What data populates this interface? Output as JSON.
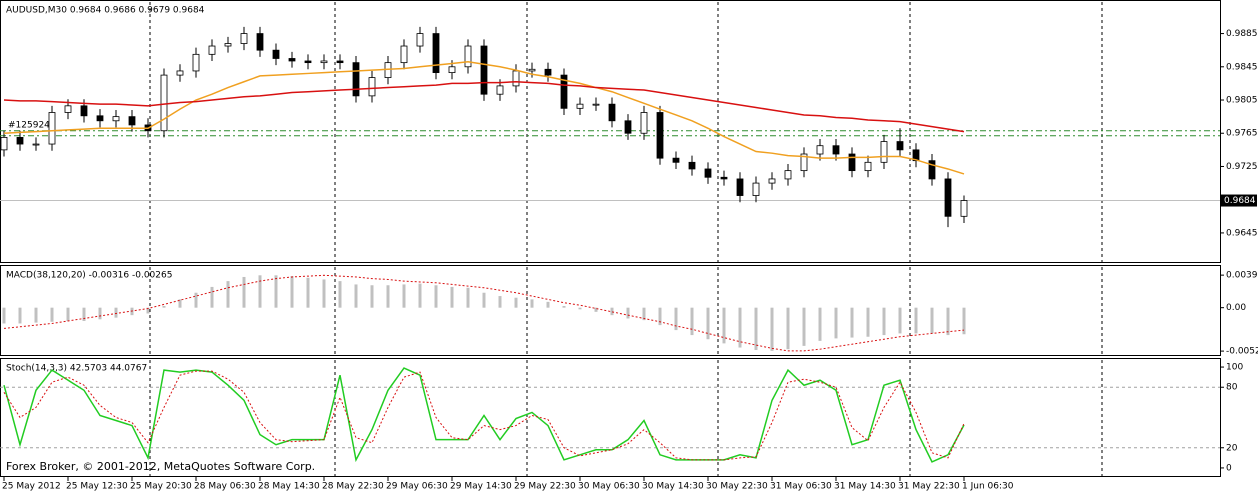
{
  "chart_data": [
    {
      "type": "candlestick",
      "title": "AUDUSD,M30 0.9684 0.9686 0.9679 0.9684",
      "order_label": "#125924",
      "open": [
        0.9745,
        0.976,
        0.9752,
        0.9752,
        0.979,
        0.9798,
        0.9786,
        0.978,
        0.9785,
        0.9775,
        0.9768,
        0.9835,
        0.984,
        0.986,
        0.987,
        0.9873,
        0.9885,
        0.9865,
        0.9855,
        0.9852,
        0.985,
        0.9852,
        0.985,
        0.981,
        0.9832,
        0.985,
        0.987,
        0.9885,
        0.9838,
        0.9845,
        0.987,
        0.9812,
        0.9822,
        0.984,
        0.9842,
        0.9835,
        0.9795,
        0.98,
        0.98,
        0.978,
        0.9765,
        0.979,
        0.9735,
        0.973,
        0.9722,
        0.9712,
        0.971,
        0.969,
        0.9705,
        0.971,
        0.972,
        0.974,
        0.975,
        0.974,
        0.972,
        0.973,
        0.9755,
        0.9745,
        0.9732,
        0.971,
        0.9665
      ],
      "high": [
        0.9768,
        0.9768,
        0.976,
        0.9798,
        0.9806,
        0.9806,
        0.9794,
        0.9793,
        0.9793,
        0.9783,
        0.9843,
        0.9848,
        0.9868,
        0.9878,
        0.9881,
        0.9893,
        0.9893,
        0.9873,
        0.9863,
        0.986,
        0.986,
        0.986,
        0.9858,
        0.984,
        0.9858,
        0.9878,
        0.9893,
        0.9893,
        0.9853,
        0.9878,
        0.9878,
        0.983,
        0.9848,
        0.985,
        0.985,
        0.9843,
        0.9808,
        0.9808,
        0.9808,
        0.9788,
        0.9798,
        0.9798,
        0.9743,
        0.9738,
        0.973,
        0.972,
        0.9718,
        0.9713,
        0.9718,
        0.9728,
        0.9748,
        0.9758,
        0.9758,
        0.9748,
        0.9738,
        0.9763,
        0.9771,
        0.9753,
        0.974,
        0.9718,
        0.969
      ],
      "low": [
        0.9737,
        0.9744,
        0.9744,
        0.9744,
        0.9782,
        0.9778,
        0.9772,
        0.9772,
        0.9767,
        0.976,
        0.976,
        0.9827,
        0.9832,
        0.9852,
        0.9862,
        0.9865,
        0.9857,
        0.9847,
        0.9844,
        0.9842,
        0.9842,
        0.9842,
        0.9802,
        0.9802,
        0.9824,
        0.9842,
        0.9862,
        0.983,
        0.983,
        0.9837,
        0.9804,
        0.9804,
        0.9814,
        0.9832,
        0.9827,
        0.9787,
        0.9787,
        0.9792,
        0.9772,
        0.9757,
        0.9757,
        0.9727,
        0.9722,
        0.9714,
        0.9704,
        0.9702,
        0.9682,
        0.9682,
        0.9697,
        0.9702,
        0.9712,
        0.9732,
        0.9732,
        0.9712,
        0.9712,
        0.9722,
        0.9737,
        0.9724,
        0.9702,
        0.9652,
        0.9657
      ],
      "close": [
        0.976,
        0.9752,
        0.9752,
        0.979,
        0.9798,
        0.9786,
        0.978,
        0.9785,
        0.9775,
        0.9768,
        0.9835,
        0.984,
        0.986,
        0.987,
        0.9873,
        0.9885,
        0.9865,
        0.9855,
        0.9852,
        0.985,
        0.9852,
        0.985,
        0.981,
        0.9832,
        0.985,
        0.987,
        0.9885,
        0.9838,
        0.9845,
        0.987,
        0.9812,
        0.9822,
        0.984,
        0.9842,
        0.9835,
        0.9795,
        0.98,
        0.98,
        0.978,
        0.9765,
        0.979,
        0.9735,
        0.973,
        0.9722,
        0.9712,
        0.971,
        0.969,
        0.9705,
        0.971,
        0.972,
        0.974,
        0.975,
        0.974,
        0.972,
        0.973,
        0.9755,
        0.9745,
        0.9732,
        0.971,
        0.9665,
        0.9684
      ],
      "moving_averages": [
        {
          "color": "#f0a020",
          "values": [
            0.9765,
            0.9766,
            0.9767,
            0.9768,
            0.9769,
            0.977,
            0.9771,
            0.9771,
            0.9771,
            0.9771,
            0.9782,
            0.9794,
            0.9805,
            0.9812,
            0.982,
            0.9827,
            0.9834,
            0.9835,
            0.9836,
            0.9837,
            0.9838,
            0.9839,
            0.984,
            0.9841,
            0.9842,
            0.9843,
            0.9845,
            0.9847,
            0.9849,
            0.9851,
            0.9848,
            0.9845,
            0.9841,
            0.9836,
            0.9833,
            0.9829,
            0.9825,
            0.982,
            0.9815,
            0.9808,
            0.9801,
            0.9794,
            0.9787,
            0.978,
            0.9771,
            0.9761,
            0.9752,
            0.9743,
            0.9741,
            0.9738,
            0.9737,
            0.9735,
            0.9735,
            0.9736,
            0.9736,
            0.9737,
            0.9737,
            0.9733,
            0.9727,
            0.9722,
            0.9716
          ]
        },
        {
          "color": "#d81010",
          "values": [
            0.9805,
            0.9804,
            0.9804,
            0.9803,
            0.9802,
            0.9801,
            0.98,
            0.98,
            0.9799,
            0.9798,
            0.98,
            0.9802,
            0.9803,
            0.9805,
            0.9807,
            0.9809,
            0.981,
            0.9812,
            0.9814,
            0.9815,
            0.9816,
            0.9817,
            0.9818,
            0.9819,
            0.982,
            0.9821,
            0.9822,
            0.9823,
            0.9825,
            0.9825,
            0.9826,
            0.9826,
            0.9827,
            0.9826,
            0.9825,
            0.9823,
            0.9822,
            0.982,
            0.9819,
            0.9818,
            0.9817,
            0.9814,
            0.9811,
            0.9808,
            0.9805,
            0.9802,
            0.9799,
            0.9796,
            0.9793,
            0.979,
            0.9787,
            0.9786,
            0.9784,
            0.9783,
            0.9781,
            0.978,
            0.9779,
            0.9776,
            0.9773,
            0.977,
            0.9767
          ]
        }
      ],
      "levels": {
        "color": "#2e8b2e",
        "values": [
          0.9768,
          0.9762
        ]
      },
      "last_price": 0.9684,
      "ylim": [
        0.961,
        0.9923
      ],
      "yticks": [
        0.9885,
        0.9845,
        0.9805,
        0.9765,
        0.9725,
        0.9645
      ]
    },
    {
      "type": "macd",
      "title": "MACD(38,120,20) -0.00316 -0.00265",
      "histogram": {
        "color": "#c0c0c0",
        "values": [
          -0.0019,
          -0.0019,
          -0.0018,
          -0.0017,
          -0.0016,
          -0.0016,
          -0.0014,
          -0.0012,
          -0.0009,
          -0.0007,
          0.0002,
          0.001,
          0.0018,
          0.0025,
          0.0032,
          0.0037,
          0.0039,
          0.0039,
          0.0038,
          0.0036,
          0.0034,
          0.0032,
          0.0028,
          0.0027,
          0.0027,
          0.0028,
          0.0029,
          0.0027,
          0.0025,
          0.0024,
          0.0018,
          0.0014,
          0.0012,
          0.001,
          0.0007,
          0.0002,
          -0.0002,
          -0.0005,
          -0.0009,
          -0.0013,
          -0.0015,
          -0.0021,
          -0.0027,
          -0.0033,
          -0.0038,
          -0.0043,
          -0.0048,
          -0.0051,
          -0.0052,
          -0.005,
          -0.0046,
          -0.004,
          -0.0037,
          -0.0036,
          -0.0035,
          -0.0033,
          -0.0031,
          -0.0031,
          -0.0031,
          -0.0033,
          -0.0032
        ]
      },
      "signal": {
        "color": "#d81010",
        "values": [
          -0.0025,
          -0.0023,
          -0.0021,
          -0.0019,
          -0.0016,
          -0.0013,
          -0.001,
          -0.0007,
          -0.0004,
          -0.0001,
          0.0004,
          0.0009,
          0.0014,
          0.0019,
          0.0024,
          0.0028,
          0.0032,
          0.0035,
          0.0037,
          0.0038,
          0.0039,
          0.0038,
          0.0037,
          0.0035,
          0.0034,
          0.0032,
          0.0031,
          0.003,
          0.0028,
          0.0026,
          0.0024,
          0.0021,
          0.0018,
          0.0014,
          0.001,
          0.0006,
          0.0003,
          -0.0001,
          -0.0005,
          -0.0009,
          -0.0013,
          -0.0017,
          -0.0022,
          -0.0026,
          -0.0031,
          -0.0036,
          -0.0041,
          -0.0045,
          -0.0049,
          -0.0052,
          -0.0052,
          -0.005,
          -0.0047,
          -0.0044,
          -0.0041,
          -0.0038,
          -0.0035,
          -0.0033,
          -0.0031,
          -0.0029,
          -0.0027
        ]
      },
      "ylim": [
        -0.0057,
        0.0049
      ],
      "yticks": [
        0.00392,
        {
          "value": 0,
          "label": "0.00"
        },
        -0.00523
      ]
    },
    {
      "type": "stochastic",
      "title": "Stoch(14,3,3) 42.5703 44.0767",
      "watermark": "Forex Broker, © 2001-2012, MetaQuotes Software Corp.",
      "series": [
        {
          "color": "#22cc22",
          "values": [
            82,
            23,
            77,
            97,
            87,
            77,
            52,
            47,
            42,
            10,
            97,
            95,
            97,
            95,
            82,
            67,
            33,
            23,
            28,
            28,
            28,
            92,
            8,
            38,
            77,
            99,
            92,
            28,
            28,
            28,
            52,
            28,
            49,
            55,
            42,
            8,
            13,
            18,
            18,
            28,
            47,
            13,
            8,
            8,
            8,
            8,
            13,
            10,
            67,
            97,
            82,
            87,
            77,
            23,
            28,
            82,
            87,
            38,
            6,
            13,
            42.6
          ]
        },
        {
          "color": "#d81010",
          "dashed": true,
          "values": [
            75,
            50,
            60,
            85,
            90,
            82,
            62,
            50,
            45,
            25,
            60,
            92,
            96,
            96,
            88,
            75,
            45,
            28,
            26,
            27,
            28,
            70,
            30,
            25,
            60,
            90,
            95,
            50,
            30,
            28,
            42,
            38,
            42,
            52,
            48,
            20,
            12,
            15,
            18,
            24,
            38,
            25,
            10,
            8,
            8,
            8,
            10,
            11,
            45,
            85,
            88,
            85,
            80,
            40,
            27,
            60,
            85,
            55,
            15,
            10,
            44.1
          ]
        }
      ],
      "levels": [
        80,
        20
      ],
      "ylim": [
        -8,
        107
      ],
      "yticks": [
        100,
        80,
        20,
        0
      ],
      "xticks": [
        {
          "value": 0,
          "label": "25 May 2012"
        },
        {
          "value": 4,
          "label": "25 May 12:30"
        },
        {
          "value": 8,
          "label": "25 May 20:30"
        },
        {
          "value": 12,
          "label": "28 May 06:30"
        },
        {
          "value": 16,
          "label": "28 May 14:30"
        },
        {
          "value": 20,
          "label": "28 May 22:30"
        },
        {
          "value": 24,
          "label": "29 May 06:30"
        },
        {
          "value": 28,
          "label": "29 May 14:30"
        },
        {
          "value": 32,
          "label": "29 May 22:30"
        },
        {
          "value": 36,
          "label": "30 May 06:30"
        },
        {
          "value": 40,
          "label": "30 May 14:30"
        },
        {
          "value": 44,
          "label": "30 May 22:30"
        },
        {
          "value": 48,
          "label": "31 May 06:30"
        },
        {
          "value": 52,
          "label": "31 May 14:30"
        },
        {
          "value": 56,
          "label": "31 May 22:30"
        },
        {
          "value": 60,
          "label": "1 Jun 06:30"
        }
      ]
    }
  ]
}
